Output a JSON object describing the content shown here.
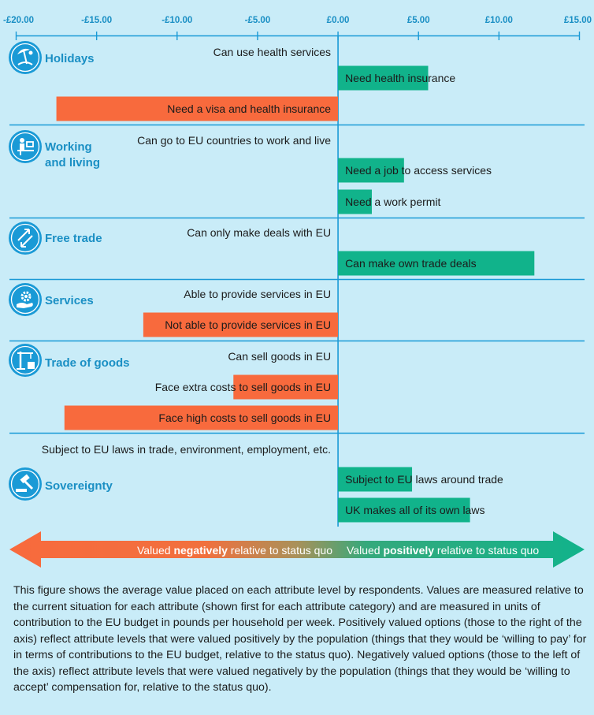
{
  "chart_data": {
    "type": "bar",
    "orientation": "horizontal",
    "x_ticks": [
      "-£20.00",
      "-£15.00",
      "-£10.00",
      "-£5.00",
      "£0.00",
      "£5.00",
      "£10.00",
      "£15.00"
    ],
    "xlim": [
      -20,
      15
    ],
    "groups": [
      {
        "category": "Holidays",
        "icon": "beach-icon",
        "levels": [
          {
            "label": "Can use health services",
            "value": 0
          },
          {
            "label": "Need health insurance",
            "value": 5.6
          },
          {
            "label": "Need a visa and health insurance",
            "value": -17.5
          }
        ]
      },
      {
        "category": "Working and living",
        "icon": "desk-worker-icon",
        "levels": [
          {
            "label": "Can go to EU countries to work and live",
            "value": 0
          },
          {
            "label": "Need a job to access services",
            "value": 4.1
          },
          {
            "label": "Need a work permit",
            "value": 2.1
          }
        ]
      },
      {
        "category": "Free trade",
        "icon": "exchange-arrows-icon",
        "levels": [
          {
            "label": "Can only make deals with EU",
            "value": 0
          },
          {
            "label": "Can make own trade deals",
            "value": 12.2
          }
        ]
      },
      {
        "category": "Services",
        "icon": "hand-gear-icon",
        "levels": [
          {
            "label": "Able to provide services in EU",
            "value": 0
          },
          {
            "label": "Not able to provide services in EU",
            "value": -12.1
          }
        ]
      },
      {
        "category": "Trade of goods",
        "icon": "crane-icon",
        "levels": [
          {
            "label": "Can sell goods in EU",
            "value": 0
          },
          {
            "label": "Face extra costs to sell goods in EU",
            "value": -6.5
          },
          {
            "label": "Face high costs to sell goods in EU",
            "value": -17.0
          }
        ]
      },
      {
        "category": "Sovereignty",
        "icon": "gavel-icon",
        "levels": [
          {
            "label": "Subject to EU laws in trade, environment, employment, etc.",
            "value": 0
          },
          {
            "label": "Subject to EU laws around trade",
            "value": 4.6
          },
          {
            "label": "UK makes all of its own laws",
            "value": 8.2
          }
        ]
      }
    ],
    "legend": {
      "negative_prefix": "Valued ",
      "negative_strong": "negatively",
      "negative_suffix": " relative to status quo",
      "positive_prefix": "Valued ",
      "positive_strong": "positively",
      "positive_suffix": " relative to status quo"
    },
    "colors": {
      "positive": "#11b38b",
      "negative": "#f86a3d",
      "axis": "#1a9ad6",
      "background": "#c9ecf8"
    }
  },
  "caption": "This figure shows the average value placed on each attribute level by respondents. Values are measured relative to the current situation for each attribute (shown first for each attribute category) and are measured in units of contribution to the EU budget in pounds per household per week. Positively valued options (those to the right of the axis) reflect attribute levels that were valued positively by the population (things that they would be ‘willing to pay’ for in terms of contributions to the EU budget, relative to the status quo). Negatively valued options (those to the left of the axis) reflect attribute levels that were valued negatively by the population (things that they would be ‘willing to accept’ compensation for, relative to the status quo)."
}
